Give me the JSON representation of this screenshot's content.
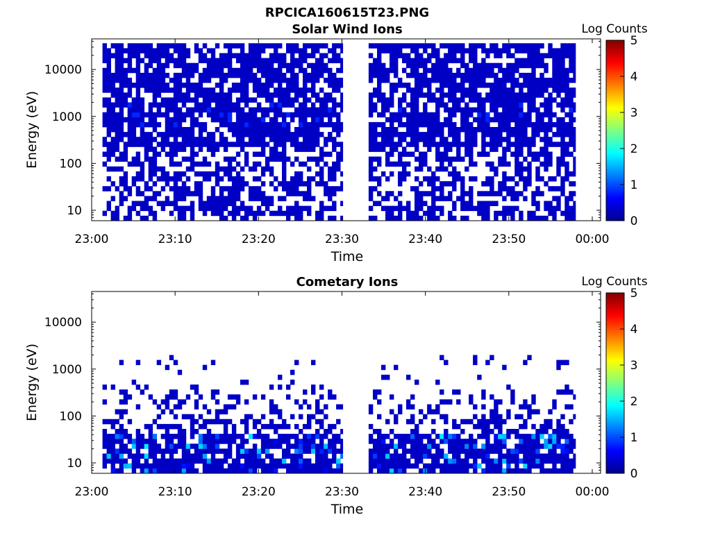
{
  "figure_title": "RPCICA160615T23.PNG",
  "colors": {
    "colormap": [
      "#00008f",
      "#0000ff",
      "#00ffff",
      "#ffff00",
      "#ff0000",
      "#800000"
    ],
    "frame": "#000000",
    "background": "#ffffff"
  },
  "chart_data": [
    {
      "type": "heatmap",
      "title": "Solar Wind Ions",
      "xlabel": "Time",
      "ylabel": "Energy (eV)",
      "x_tick_labels": [
        "23:00",
        "23:10",
        "23:20",
        "23:30",
        "23:40",
        "23:50",
        "00:00"
      ],
      "x_ticks_minutes": [
        0,
        10,
        20,
        30,
        40,
        50,
        60
      ],
      "xlim_minutes": [
        0,
        61
      ],
      "y_scale": "log",
      "y_tick_labels": [
        "10",
        "100",
        "1000",
        "10000"
      ],
      "y_ticks": [
        10,
        100,
        1000,
        10000
      ],
      "ylim": [
        6,
        45000
      ],
      "colorbar": {
        "label": "Log Counts",
        "tick_labels": [
          "0",
          "1",
          "2",
          "3",
          "4",
          "5"
        ],
        "range": [
          0,
          5
        ]
      },
      "data_coverage_minutes": [
        [
          1.3,
          30.1
        ],
        [
          33.2,
          58.0
        ]
      ],
      "typical_level": 0.3,
      "note_peak_level": 0.8
    },
    {
      "type": "heatmap",
      "title": "Cometary Ions",
      "xlabel": "Time",
      "ylabel": "Energy (eV)",
      "x_tick_labels": [
        "23:00",
        "23:10",
        "23:20",
        "23:30",
        "23:40",
        "23:50",
        "00:00"
      ],
      "x_ticks_minutes": [
        0,
        10,
        20,
        30,
        40,
        50,
        60
      ],
      "xlim_minutes": [
        0,
        61
      ],
      "y_scale": "log",
      "y_tick_labels": [
        "10",
        "100",
        "1000",
        "10000"
      ],
      "y_ticks": [
        10,
        100,
        1000,
        10000
      ],
      "ylim": [
        6,
        45000
      ],
      "colorbar": {
        "label": "Log Counts",
        "tick_labels": [
          "0",
          "1",
          "2",
          "3",
          "4",
          "5"
        ],
        "range": [
          0,
          5
        ]
      },
      "data_coverage_minutes": [
        [
          1.3,
          30.1
        ],
        [
          33.2,
          58.0
        ]
      ],
      "typical_level": 0.3,
      "note_peak_level": 1.8
    }
  ]
}
